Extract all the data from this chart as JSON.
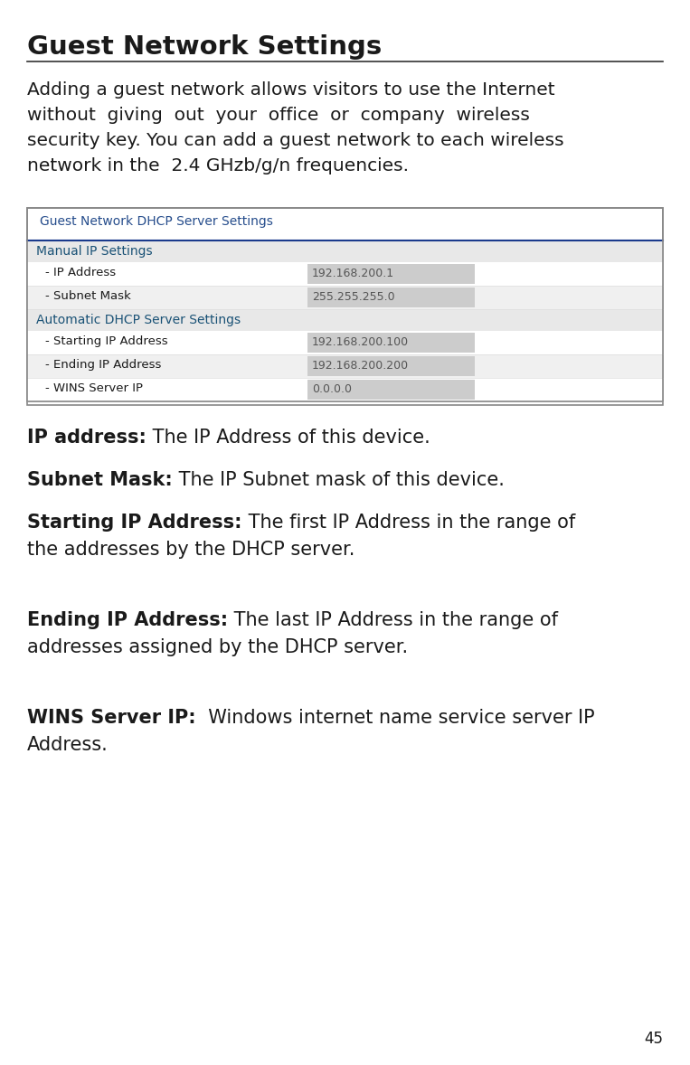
{
  "title": "Guest Network Settings",
  "intro_lines": [
    "Adding a guest network allows visitors to use the Internet",
    "without  giving  out  your  office  or  company  wireless",
    "security key. You can add a guest network to each wireless",
    "network in the  2.4 GHzb/g/n frequencies."
  ],
  "table_header": "Guest Network DHCP Server Settings",
  "table_section1": "Manual IP Settings",
  "table_section2": "Automatic DHCP Server Settings",
  "table_rows": [
    {
      "label": "- IP Address",
      "value": "192.168.200.1",
      "alt": true
    },
    {
      "label": "- Subnet Mask",
      "value": "255.255.255.0",
      "alt": false
    },
    {
      "label": "- Starting IP Address",
      "value": "192.168.200.100",
      "alt": true
    },
    {
      "label": "- Ending IP Address",
      "value": "192.168.200.200",
      "alt": false
    },
    {
      "label": "- WINS Server IP",
      "value": "0.0.0.0",
      "alt": true
    }
  ],
  "bullet_items": [
    {
      "bold": "IP address:",
      "lines": [
        " The IP Address of this device."
      ],
      "bold_only_first": true
    },
    {
      "bold": "Subnet Mask:",
      "lines": [
        " The IP Subnet mask of this device."
      ],
      "bold_only_first": true
    },
    {
      "bold": "Starting IP Address:",
      "lines": [
        " The first IP Address in the range of",
        "the addresses by the DHCP server."
      ],
      "bold_only_first": true
    },
    {
      "bold": "Ending IP Address:",
      "lines": [
        " The last IP Address in the range of",
        "addresses assigned by the DHCP server."
      ],
      "bold_only_first": true
    },
    {
      "bold": "WINS Server IP:",
      "lines": [
        "  Windows internet name service server IP",
        "Address."
      ],
      "bold_only_first": true
    }
  ],
  "page_number": "45",
  "bg_color": "#ffffff",
  "text_color": "#1a1a1a",
  "blue_color": "#264d8c",
  "table_border_color": "#888888",
  "table_line_color": "#1a3a8c",
  "table_alt_row": "#f0f0f0",
  "table_white_row": "#ffffff",
  "section_header_bg": "#e8e8e8",
  "section_label_color": "#1a5276",
  "input_bg": "#cccccc",
  "input_text": "#555555"
}
